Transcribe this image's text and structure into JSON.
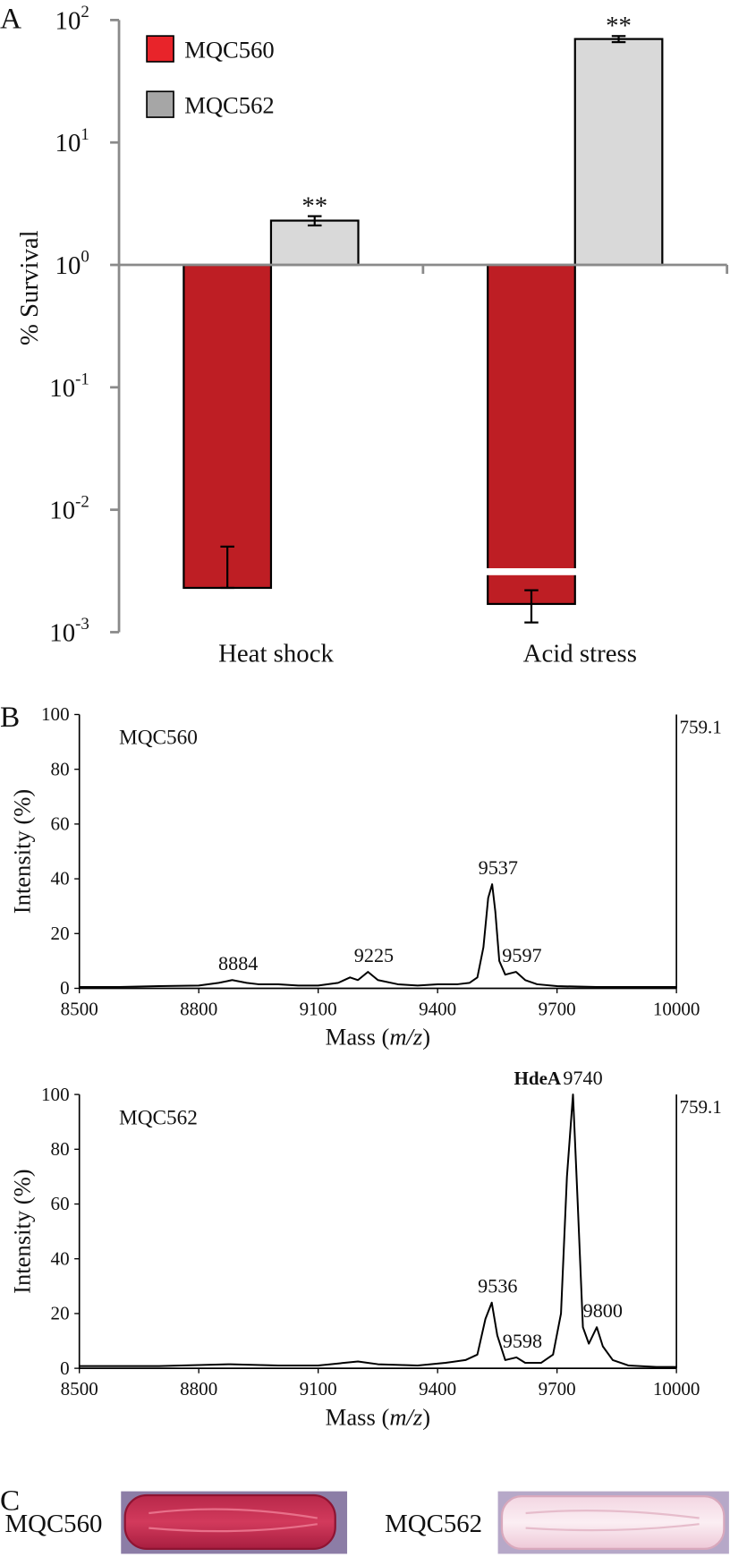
{
  "panel_labels": [
    "A",
    "B",
    "C"
  ],
  "chart_data": [
    {
      "type": "bar",
      "ylabel": "% Survival",
      "categories": [
        "Heat shock",
        "Acid stress"
      ],
      "log_scale": true,
      "bar_base": 1,
      "ylim": [
        0.001,
        100
      ],
      "yticks": [
        {
          "value": 0.001,
          "label": "10",
          "exponent": "-3"
        },
        {
          "value": 0.01,
          "label": "10",
          "exponent": "-2"
        },
        {
          "value": 0.1,
          "label": "10",
          "exponent": "-1"
        },
        {
          "value": 1,
          "label": "10",
          "exponent": "0"
        },
        {
          "value": 10,
          "label": "10",
          "exponent": "1"
        },
        {
          "value": 100,
          "label": "10",
          "exponent": "2"
        }
      ],
      "legend": "upper left",
      "series": [
        {
          "name": "MQC560",
          "color": "#be1e24",
          "legend_color": "#e8242a",
          "values": [
            0.0023,
            0.0017
          ],
          "errors": [
            0.0027,
            0.0005
          ]
        },
        {
          "name": "MQC562",
          "color": "#d9d9d9",
          "legend_color": "#a6a6a6",
          "values": [
            2.3,
            70
          ],
          "errors": [
            0.2,
            4
          ],
          "annotations": [
            "**",
            "**"
          ]
        }
      ]
    },
    {
      "type": "line",
      "ylabel": "Intensity (%)",
      "xlabel_parts": [
        "Mass (",
        "m/z",
        ")"
      ],
      "right_label": "759.1",
      "xlim": [
        8500,
        10000
      ],
      "xticks": [
        8500,
        8800,
        9100,
        9400,
        9700,
        10000
      ],
      "ylim": [
        0,
        100
      ],
      "yticks": [
        0,
        20,
        40,
        60,
        80,
        100
      ],
      "x": [
        8500,
        8600,
        8700,
        8800,
        8850,
        8884,
        8920,
        8950,
        9000,
        9050,
        9100,
        9150,
        9180,
        9200,
        9225,
        9250,
        9300,
        9350,
        9400,
        9450,
        9480,
        9500,
        9515,
        9527,
        9537,
        9545,
        9555,
        9570,
        9597,
        9620,
        9650,
        9700,
        9800,
        9900,
        10000
      ],
      "series": [
        {
          "name": "MQC560",
          "color": "#000000",
          "values": [
            0.5,
            0.5,
            0.8,
            1,
            2,
            3,
            2,
            1.5,
            1.5,
            1,
            1,
            2,
            4,
            3,
            6,
            3,
            1.5,
            1,
            1.5,
            1.5,
            2,
            4,
            15,
            33,
            38,
            28,
            10,
            5,
            6,
            3,
            1.5,
            0.8,
            0.5,
            0.5,
            0.5
          ]
        }
      ],
      "peaks": [
        {
          "x": 8884,
          "y": 3
        },
        {
          "x": 9225,
          "y": 6
        },
        {
          "x": 9537,
          "y": 38
        },
        {
          "x": 9597,
          "y": 6
        }
      ]
    },
    {
      "type": "line",
      "ylabel": "Intensity (%)",
      "xlabel_parts": [
        "Mass (",
        "m/z",
        ")"
      ],
      "right_label": "759.1",
      "xlim": [
        8500,
        10000
      ],
      "xticks": [
        8500,
        8800,
        9100,
        9400,
        9700,
        10000
      ],
      "ylim": [
        0,
        100
      ],
      "yticks": [
        0,
        20,
        40,
        60,
        80,
        100
      ],
      "x": [
        8500,
        8700,
        8880,
        9000,
        9100,
        9200,
        9250,
        9350,
        9420,
        9470,
        9500,
        9520,
        9536,
        9550,
        9570,
        9598,
        9620,
        9660,
        9690,
        9710,
        9725,
        9740,
        9752,
        9765,
        9780,
        9800,
        9815,
        9840,
        9880,
        9950,
        10000
      ],
      "series": [
        {
          "name": "MQC562",
          "color": "#000000",
          "values": [
            0.8,
            0.8,
            1.5,
            1,
            1,
            2.5,
            1.5,
            1,
            2,
            3,
            5,
            18,
            24,
            12,
            3,
            4,
            2,
            2,
            5,
            20,
            70,
            100,
            60,
            15,
            9,
            15,
            8,
            3,
            1,
            0.5,
            0.5
          ]
        }
      ],
      "peaks": [
        {
          "x": 9536,
          "y": 24
        },
        {
          "x": 9598,
          "y": 4
        },
        {
          "x": 9740,
          "y": 100,
          "name": "HdeA"
        },
        {
          "x": 9800,
          "y": 15
        }
      ]
    }
  ],
  "plates": [
    {
      "label": "MQC560"
    },
    {
      "label": "MQC562"
    }
  ]
}
